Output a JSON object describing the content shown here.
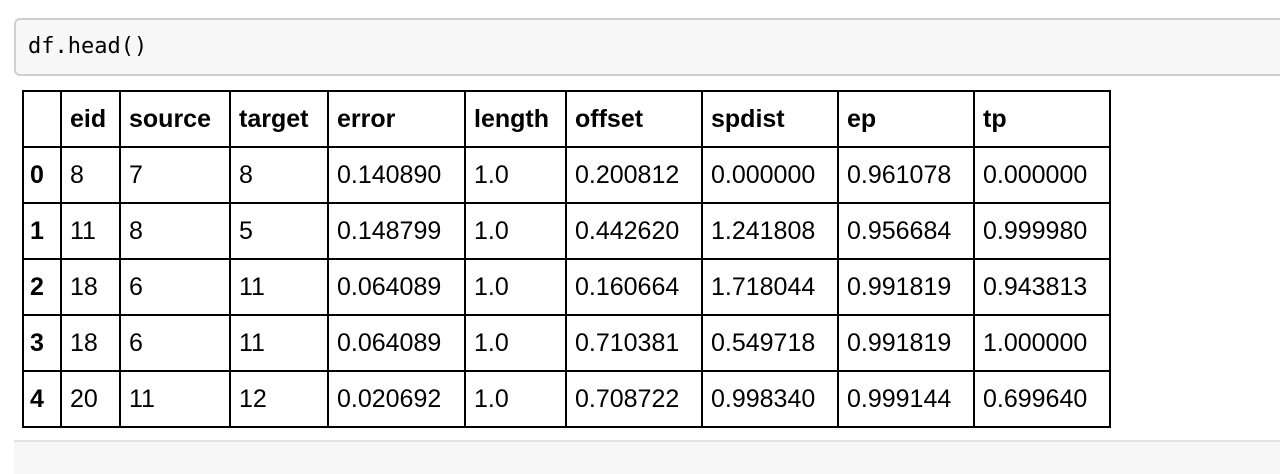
{
  "input_cell": {
    "code": "df.head()"
  },
  "dataframe": {
    "columns": [
      "eid",
      "source",
      "target",
      "error",
      "length",
      "offset",
      "spdist",
      "ep",
      "tp"
    ],
    "rows": [
      {
        "index": "0",
        "values": [
          "8",
          "7",
          "8",
          "0.140890",
          "1.0",
          "0.200812",
          "0.000000",
          "0.961078",
          "0.000000"
        ]
      },
      {
        "index": "1",
        "values": [
          "11",
          "8",
          "5",
          "0.148799",
          "1.0",
          "0.442620",
          "1.241808",
          "0.956684",
          "0.999980"
        ]
      },
      {
        "index": "2",
        "values": [
          "18",
          "6",
          "11",
          "0.064089",
          "1.0",
          "0.160664",
          "1.718044",
          "0.991819",
          "0.943813"
        ]
      },
      {
        "index": "3",
        "values": [
          "18",
          "6",
          "11",
          "0.064089",
          "1.0",
          "0.710381",
          "0.549718",
          "0.991819",
          "1.000000"
        ]
      },
      {
        "index": "4",
        "values": [
          "20",
          "11",
          "12",
          "0.020692",
          "1.0",
          "0.708722",
          "0.998340",
          "0.999144",
          "0.699640"
        ]
      }
    ]
  }
}
